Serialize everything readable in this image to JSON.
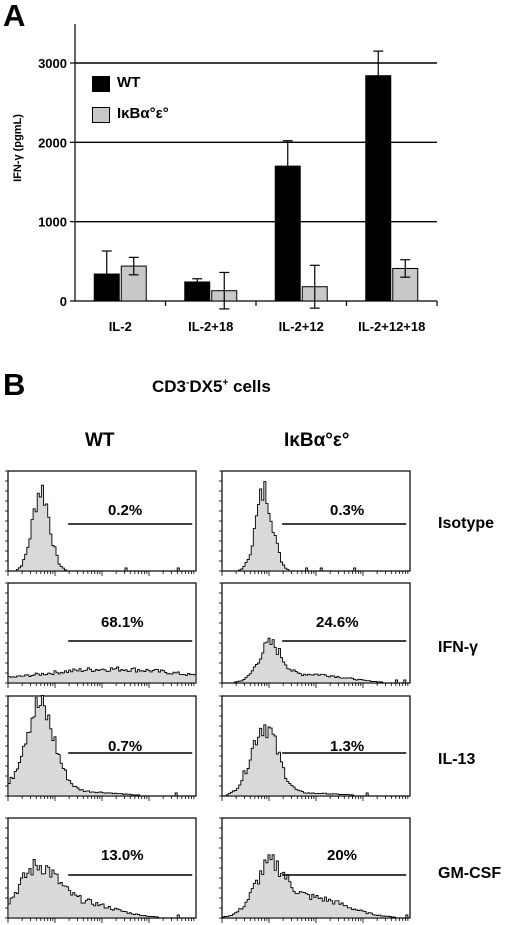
{
  "panel_a": {
    "letter": "A",
    "ylabel": "IFN-γ (pgmL)",
    "legend": [
      {
        "label": "WT",
        "color": "#000000"
      },
      {
        "label": "IκBα°ε°",
        "color": "#c8c8c8"
      }
    ]
  },
  "panel_b": {
    "letter": "B",
    "title_main": "CD3",
    "title_sup1": "-",
    "title_mid": "DX5",
    "title_sup2": "+",
    "title_tail": " cells",
    "columns": [
      "WT",
      "IκBα°ε°"
    ],
    "rows": [
      {
        "label": "Isotype",
        "wt": "0.2%",
        "ko": "0.3%"
      },
      {
        "label": "IFN-γ",
        "wt": "68.1%",
        "ko": "24.6%"
      },
      {
        "label": "IL-13",
        "wt": "0.7%",
        "ko": "1.3%"
      },
      {
        "label": "GM-CSF",
        "wt": "13.0%",
        "ko": "20%"
      }
    ]
  },
  "chart_data": [
    {
      "type": "bar",
      "categories": [
        "IL-2",
        "IL-2+18",
        "IL-2+12",
        "IL-2+12+18"
      ],
      "series": [
        {
          "name": "WT",
          "values": [
            340,
            240,
            1700,
            2840
          ],
          "errors": [
            290,
            40,
            320,
            310
          ],
          "color": "#000000"
        },
        {
          "name": "IκBα°ε°",
          "values": [
            440,
            130,
            180,
            410
          ],
          "errors": [
            110,
            230,
            270,
            110
          ],
          "color": "#c8c8c8"
        }
      ],
      "ylabel": "IFN-γ (pgmL)",
      "ylim": [
        0,
        3000
      ],
      "yticks": [
        0,
        1000,
        2000,
        3000
      ],
      "grid": true,
      "legend": "top-left"
    },
    {
      "type": "histogram",
      "title": "CD3-DX5+ cells",
      "columns": [
        "WT",
        "IκBα°ε°"
      ],
      "rows": [
        "Isotype",
        "IFN-γ",
        "IL-13",
        "GM-CSF"
      ],
      "percentages": {
        "WT": [
          "0.2%",
          "68.1%",
          "0.7%",
          "13.0%"
        ],
        "IκBα°ε°": [
          "0.3%",
          "24.6%",
          "1.3%",
          "20%"
        ]
      }
    }
  ]
}
